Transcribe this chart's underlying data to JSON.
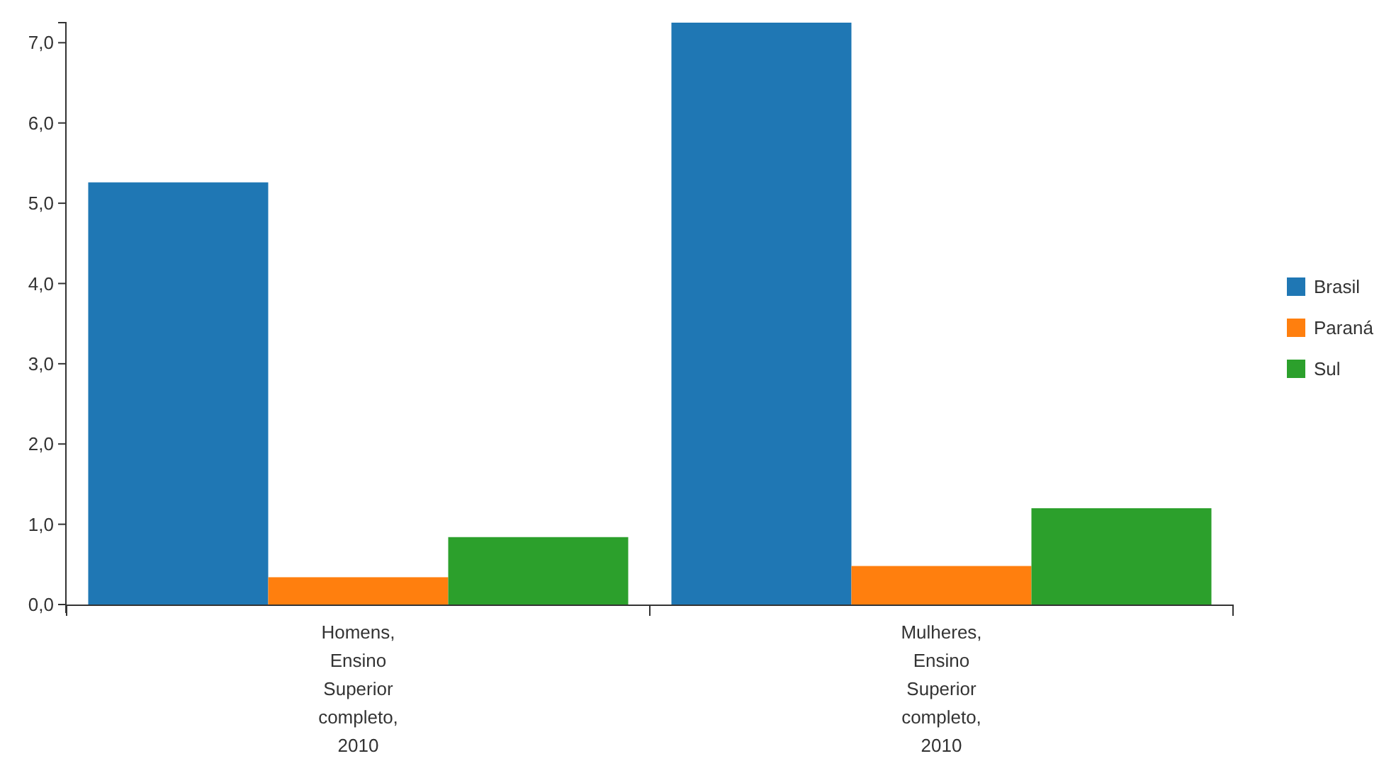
{
  "chart_data": {
    "type": "bar",
    "categories": [
      "Homens, Ensino Superior completo, 2010",
      "Mulheres, Ensino Superior completo, 2010"
    ],
    "series": [
      {
        "name": "Brasil",
        "color": "#1f77b4",
        "values": [
          5.26,
          7.25
        ]
      },
      {
        "name": "Paraná",
        "color": "#ff7f0e",
        "values": [
          0.34,
          0.48
        ]
      },
      {
        "name": "Sul",
        "color": "#2ca02c",
        "values": [
          0.84,
          1.2
        ]
      }
    ],
    "ylim": [
      0,
      7.25
    ],
    "yticks": [
      {
        "value": 0,
        "label": "0,0"
      },
      {
        "value": 1,
        "label": "1,0"
      },
      {
        "value": 2,
        "label": "2,0"
      },
      {
        "value": 3,
        "label": "3,0"
      },
      {
        "value": 4,
        "label": "4,0"
      },
      {
        "value": 5,
        "label": "5,0"
      },
      {
        "value": 6,
        "label": "6,0"
      },
      {
        "value": 7,
        "label": "7,0"
      }
    ],
    "grid": false,
    "legend": "right"
  }
}
